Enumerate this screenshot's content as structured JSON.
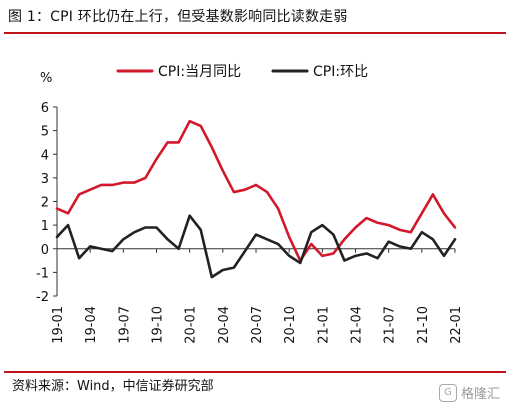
{
  "title": "图 1：CPI 环比仍在上行，但受基数影响同比读数走弱",
  "source": "资料来源：Wind，中信证券研究部",
  "brand": {
    "name": "格隆汇",
    "logo_icon": "G"
  },
  "colors": {
    "accent": "#c0141c",
    "series_0": "#d2182a",
    "series_1": "#222222"
  },
  "chart_data": {
    "type": "line",
    "title": "图 1：CPI 环比仍在上行，但受基数影响同比读数走弱",
    "xlabel": "",
    "ylabel": "%",
    "ylim": [
      -2,
      6
    ],
    "yticks": [
      -2,
      -1,
      0,
      1,
      2,
      3,
      4,
      5,
      6
    ],
    "grid": false,
    "legend_position": "top",
    "x": [
      "19-01",
      "19-02",
      "19-03",
      "19-04",
      "19-05",
      "19-06",
      "19-07",
      "19-08",
      "19-09",
      "19-10",
      "19-11",
      "19-12",
      "20-01",
      "20-02",
      "20-03",
      "20-04",
      "20-05",
      "20-06",
      "20-07",
      "20-08",
      "20-09",
      "20-10",
      "20-11",
      "20-12",
      "21-01",
      "21-02",
      "21-03",
      "21-04",
      "21-05",
      "21-06",
      "21-07",
      "21-08",
      "21-09",
      "21-10",
      "21-11",
      "21-12",
      "22-01"
    ],
    "xtick_labels": [
      "19-01",
      "19-04",
      "19-07",
      "19-10",
      "20-01",
      "20-04",
      "20-07",
      "20-10",
      "21-01",
      "21-04",
      "21-07",
      "21-10",
      "22-01"
    ],
    "series": [
      {
        "name": "CPI:当月同比",
        "color": "#d2182a",
        "values": [
          1.7,
          1.5,
          2.3,
          2.5,
          2.7,
          2.7,
          2.8,
          2.8,
          3.0,
          3.8,
          4.5,
          4.5,
          5.4,
          5.2,
          4.3,
          3.3,
          2.4,
          2.5,
          2.7,
          2.4,
          1.7,
          0.5,
          -0.5,
          0.2,
          -0.3,
          -0.2,
          0.4,
          0.9,
          1.3,
          1.1,
          1.0,
          0.8,
          0.7,
          1.5,
          2.3,
          1.5,
          0.9
        ]
      },
      {
        "name": "CPI:环比",
        "color": "#222222",
        "values": [
          0.5,
          1.0,
          -0.4,
          0.1,
          0.0,
          -0.1,
          0.4,
          0.7,
          0.9,
          0.9,
          0.4,
          0.0,
          1.4,
          0.8,
          -1.2,
          -0.9,
          -0.8,
          -0.1,
          0.6,
          0.4,
          0.2,
          -0.3,
          -0.6,
          0.7,
          1.0,
          0.6,
          -0.5,
          -0.3,
          -0.2,
          -0.4,
          0.3,
          0.1,
          0.0,
          0.7,
          0.4,
          -0.3,
          0.4
        ]
      }
    ]
  }
}
